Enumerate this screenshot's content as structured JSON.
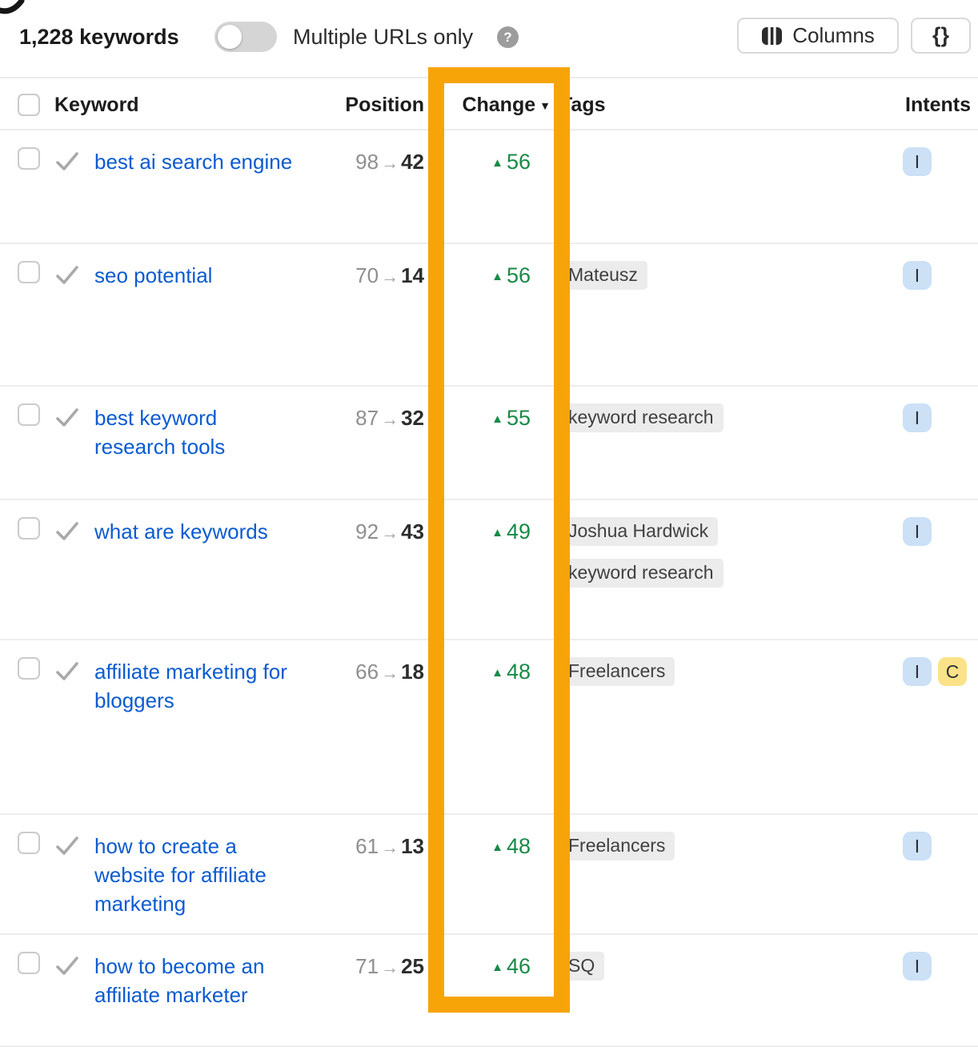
{
  "toolbar": {
    "keyword_count": "1,228 keywords",
    "multiple_urls_toggle": {
      "label": "Multiple URLs only",
      "state": "off"
    },
    "help_icon": "?",
    "columns_button": "Columns",
    "code_button": "{}"
  },
  "table": {
    "headers": {
      "keyword": "Keyword",
      "position": "Position",
      "change": "Change",
      "tags": "Tags",
      "intents": "Intents"
    },
    "sort": {
      "column": "Change",
      "direction": "desc"
    },
    "rows": [
      {
        "keyword": "best ai search engine",
        "position_before": "98",
        "position_after": "42",
        "change": "56",
        "change_direction": "up",
        "tags": [],
        "intents": [
          "I"
        ]
      },
      {
        "keyword": "seo potential",
        "position_before": "70",
        "position_after": "14",
        "change": "56",
        "change_direction": "up",
        "tags": [
          "Mateusz"
        ],
        "intents": [
          "I"
        ]
      },
      {
        "keyword": "best keyword research tools",
        "position_before": "87",
        "position_after": "32",
        "change": "55",
        "change_direction": "up",
        "tags": [
          "keyword research"
        ],
        "intents": [
          "I"
        ]
      },
      {
        "keyword": "what are keywords",
        "position_before": "92",
        "position_after": "43",
        "change": "49",
        "change_direction": "up",
        "tags": [
          "Joshua Hardwick",
          "keyword research"
        ],
        "intents": [
          "I"
        ]
      },
      {
        "keyword": "affiliate marketing for bloggers",
        "position_before": "66",
        "position_after": "18",
        "change": "48",
        "change_direction": "up",
        "tags": [
          "Freelancers"
        ],
        "intents": [
          "I",
          "C"
        ]
      },
      {
        "keyword": "how to create a website for affiliate marketing",
        "position_before": "61",
        "position_after": "13",
        "change": "48",
        "change_direction": "up",
        "tags": [
          "Freelancers"
        ],
        "intents": [
          "I"
        ]
      },
      {
        "keyword": "how to become an affiliate marketer",
        "position_before": "71",
        "position_after": "25",
        "change": "46",
        "change_direction": "up",
        "tags": [
          "SQ"
        ],
        "intents": [
          "I"
        ]
      }
    ]
  },
  "icons": {
    "position_arrow": "→",
    "change_up": "▲",
    "sort_desc": "▼"
  },
  "highlight": {
    "highlighted_column": "Change",
    "color": "#F7A409"
  },
  "colors": {
    "link_blue": "#0B5BD0",
    "positive_green": "#188A47",
    "tag_background": "#ECECEC",
    "intent_i_background": "#CCE0F6",
    "intent_c_background": "#FBE289"
  }
}
